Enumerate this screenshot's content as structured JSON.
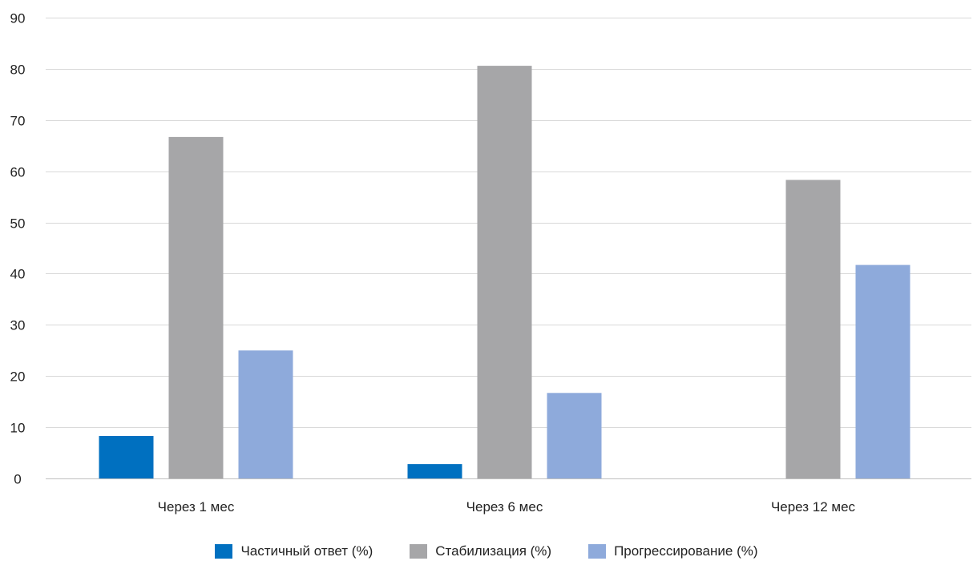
{
  "chart_data": {
    "type": "bar",
    "title": "",
    "xlabel": "",
    "ylabel": "",
    "categories": [
      "Через 1 мес",
      "Через 6 мес",
      "Через 12 мес"
    ],
    "series": [
      {
        "name": "Частичный ответ (%)",
        "color": "#0070c0",
        "values": [
          8.3,
          2.8,
          0
        ]
      },
      {
        "name": "Стабилизация (%)",
        "color": "#a6a6a8",
        "values": [
          66.7,
          80.6,
          58.3
        ]
      },
      {
        "name": "Прогрессирование (%)",
        "color": "#8eaadb",
        "values": [
          25,
          16.7,
          41.7
        ]
      }
    ],
    "ylim": [
      0,
      90
    ],
    "yticks": [
      0,
      10,
      20,
      30,
      40,
      50,
      60,
      70,
      80,
      90
    ],
    "grid": true,
    "legend_position": "bottom",
    "gridline_color": "#d9d9d9"
  }
}
